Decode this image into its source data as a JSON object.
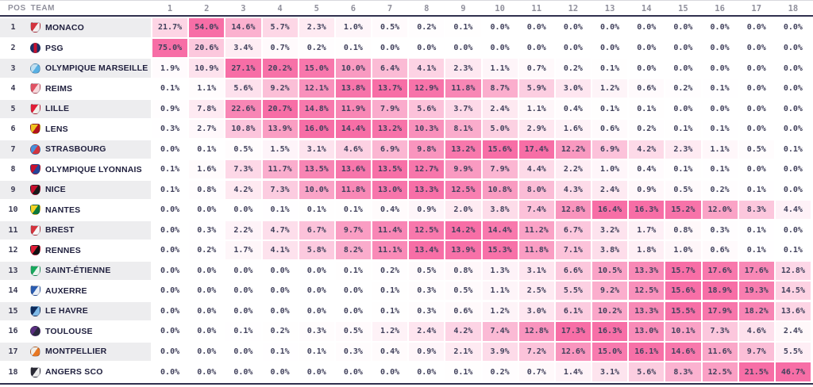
{
  "table": {
    "pos_header": "POS",
    "team_header": "TEAM"
  },
  "colors": {
    "divider": "#30304e",
    "zebra": "#ededef",
    "header_text": "#90909c",
    "value_text": "#41415c",
    "team_text": "#20203e",
    "pos_text": "#3a3a52",
    "heat_max": "#f76ea6",
    "heat_min": "#ffffff"
  },
  "chart_data": {
    "type": "heatmap",
    "x_labels": [
      "1",
      "2",
      "3",
      "4",
      "5",
      "6",
      "7",
      "8",
      "9",
      "10",
      "11",
      "12",
      "13",
      "14",
      "15",
      "16",
      "17",
      "18"
    ],
    "value_format": "percent_one_decimal",
    "color_scale": {
      "min_color": "#ffffff",
      "max_color": "#f76ea6",
      "normalize": "column-max"
    },
    "rows": [
      {
        "pos": "1",
        "team": "MONACO",
        "crest": {
          "shape": "shield",
          "split": "diag",
          "colors": [
            "#d3343e",
            "#f5efef"
          ]
        },
        "values": [
          21.7,
          54.0,
          14.6,
          5.7,
          2.3,
          1.0,
          0.5,
          0.2,
          0.1,
          0.0,
          0.0,
          0.0,
          0.0,
          0.0,
          0.0,
          0.0,
          0.0,
          0.0
        ]
      },
      {
        "pos": "2",
        "team": "PSG",
        "crest": {
          "shape": "circle",
          "split": "vstripe",
          "colors": [
            "#1a3068",
            "#c8102e"
          ]
        },
        "values": [
          75.0,
          20.6,
          3.4,
          0.7,
          0.2,
          0.1,
          0.0,
          0.0,
          0.0,
          0.0,
          0.0,
          0.0,
          0.0,
          0.0,
          0.0,
          0.0,
          0.0,
          0.0
        ]
      },
      {
        "pos": "3",
        "team": "OLYMPIQUE MARSEILLE",
        "crest": {
          "shape": "circle",
          "split": "diag",
          "colors": [
            "#bfe0f2",
            "#58b0e3"
          ]
        },
        "values": [
          1.9,
          10.9,
          27.1,
          20.2,
          15.0,
          10.0,
          6.4,
          4.1,
          2.3,
          1.1,
          0.7,
          0.2,
          0.1,
          0.0,
          0.0,
          0.0,
          0.0,
          0.0
        ]
      },
      {
        "pos": "4",
        "team": "REIMS",
        "crest": {
          "shape": "shield",
          "split": "diag",
          "colors": [
            "#e05263",
            "#f7d9dc"
          ]
        },
        "values": [
          0.1,
          1.1,
          5.6,
          9.2,
          12.1,
          13.8,
          13.7,
          12.9,
          11.8,
          8.7,
          5.9,
          3.0,
          1.2,
          0.6,
          0.2,
          0.1,
          0.0,
          0.0
        ]
      },
      {
        "pos": "5",
        "team": "LILLE",
        "crest": {
          "shape": "shield",
          "split": "diag",
          "colors": [
            "#e01e37",
            "#f2efe9"
          ]
        },
        "values": [
          0.9,
          7.8,
          22.6,
          20.7,
          14.8,
          11.9,
          7.9,
          5.6,
          3.7,
          2.4,
          1.1,
          0.4,
          0.1,
          0.1,
          0.0,
          0.0,
          0.0,
          0.0
        ]
      },
      {
        "pos": "6",
        "team": "LENS",
        "crest": {
          "shape": "shield",
          "split": "diag",
          "colors": [
            "#f0c420",
            "#b5121b"
          ]
        },
        "values": [
          0.3,
          2.7,
          10.8,
          13.9,
          16.0,
          14.4,
          13.2,
          10.3,
          8.1,
          5.0,
          2.9,
          1.6,
          0.6,
          0.2,
          0.1,
          0.1,
          0.0,
          0.0
        ]
      },
      {
        "pos": "7",
        "team": "STRASBOURG",
        "crest": {
          "shape": "circle",
          "split": "diag",
          "colors": [
            "#4a90d9",
            "#d3343e"
          ]
        },
        "values": [
          0.0,
          0.1,
          0.5,
          1.5,
          3.1,
          4.6,
          6.9,
          9.8,
          13.2,
          15.6,
          17.4,
          12.2,
          6.9,
          4.2,
          2.3,
          1.1,
          0.5,
          0.1
        ]
      },
      {
        "pos": "8",
        "team": "OLYMPIQUE LYONNAIS",
        "crest": {
          "shape": "shield",
          "split": "diag",
          "colors": [
            "#c8102e",
            "#24459a"
          ]
        },
        "values": [
          0.1,
          1.6,
          7.3,
          11.7,
          13.5,
          13.6,
          13.5,
          12.7,
          9.9,
          7.9,
          4.4,
          2.2,
          1.0,
          0.4,
          0.1,
          0.1,
          0.0,
          0.0
        ]
      },
      {
        "pos": "9",
        "team": "NICE",
        "crest": {
          "shape": "shield",
          "split": "diag",
          "colors": [
            "#c8102e",
            "#1a1a1a"
          ]
        },
        "values": [
          0.1,
          0.8,
          4.2,
          7.3,
          10.0,
          11.8,
          13.0,
          13.3,
          12.5,
          10.8,
          8.0,
          4.3,
          2.4,
          0.9,
          0.5,
          0.2,
          0.1,
          0.0
        ]
      },
      {
        "pos": "10",
        "team": "NANTES",
        "crest": {
          "shape": "shield",
          "split": "diag",
          "colors": [
            "#f5d327",
            "#0a7a3c"
          ]
        },
        "values": [
          0.0,
          0.0,
          0.0,
          0.1,
          0.1,
          0.1,
          0.4,
          0.9,
          2.0,
          3.8,
          7.4,
          12.8,
          16.4,
          16.3,
          15.2,
          12.0,
          8.3,
          4.4
        ]
      },
      {
        "pos": "11",
        "team": "BREST",
        "crest": {
          "shape": "shield",
          "split": "diag",
          "colors": [
            "#d3343e",
            "#f7f7f7"
          ]
        },
        "values": [
          0.0,
          0.3,
          2.2,
          4.7,
          6.7,
          9.7,
          11.4,
          12.5,
          14.2,
          14.4,
          11.2,
          6.7,
          3.2,
          1.7,
          0.8,
          0.3,
          0.1,
          0.0
        ]
      },
      {
        "pos": "12",
        "team": "RENNES",
        "crest": {
          "shape": "shield",
          "split": "diag",
          "colors": [
            "#e01e37",
            "#111111"
          ]
        },
        "values": [
          0.0,
          0.2,
          1.7,
          4.1,
          5.8,
          8.2,
          11.1,
          13.4,
          13.9,
          15.3,
          11.8,
          7.1,
          3.8,
          1.8,
          1.0,
          0.6,
          0.1,
          0.1
        ]
      },
      {
        "pos": "13",
        "team": "SAINT-ÉTIENNE",
        "crest": {
          "shape": "shield",
          "split": "diag",
          "colors": [
            "#18a85c",
            "#e9f5ee"
          ]
        },
        "values": [
          0.0,
          0.0,
          0.0,
          0.0,
          0.0,
          0.1,
          0.2,
          0.5,
          0.8,
          1.3,
          3.1,
          6.6,
          10.5,
          13.3,
          15.7,
          17.6,
          17.6,
          12.8
        ]
      },
      {
        "pos": "14",
        "team": "AUXERRE",
        "crest": {
          "shape": "shield",
          "split": "diag",
          "colors": [
            "#2a5cb0",
            "#e8eef7"
          ]
        },
        "values": [
          0.0,
          0.0,
          0.0,
          0.0,
          0.0,
          0.0,
          0.1,
          0.3,
          0.5,
          1.1,
          2.5,
          5.5,
          9.2,
          12.5,
          15.6,
          18.9,
          19.3,
          14.5
        ]
      },
      {
        "pos": "15",
        "team": "LE HAVRE",
        "crest": {
          "shape": "shield",
          "split": "diag",
          "colors": [
            "#0e2a5c",
            "#7db9e8"
          ]
        },
        "values": [
          0.0,
          0.0,
          0.0,
          0.0,
          0.0,
          0.0,
          0.1,
          0.3,
          0.6,
          1.2,
          3.0,
          6.1,
          10.2,
          13.3,
          15.5,
          17.9,
          18.2,
          13.6
        ]
      },
      {
        "pos": "16",
        "team": "TOULOUSE",
        "crest": {
          "shape": "circle",
          "split": "diag",
          "colors": [
            "#5a2d81",
            "#2a2a3e"
          ]
        },
        "values": [
          0.0,
          0.0,
          0.1,
          0.2,
          0.3,
          0.5,
          1.2,
          2.4,
          4.2,
          7.4,
          12.8,
          17.3,
          16.3,
          13.0,
          10.1,
          7.3,
          4.6,
          2.4
        ]
      },
      {
        "pos": "17",
        "team": "MONTPELLIER",
        "crest": {
          "shape": "circle",
          "split": "diag",
          "colors": [
            "#f0ede6",
            "#e87722"
          ]
        },
        "values": [
          0.0,
          0.0,
          0.0,
          0.1,
          0.1,
          0.3,
          0.4,
          0.9,
          2.1,
          3.9,
          7.2,
          12.6,
          15.0,
          16.1,
          14.6,
          11.6,
          9.7,
          5.5
        ]
      },
      {
        "pos": "18",
        "team": "ANGERS SCO",
        "crest": {
          "shape": "shield",
          "split": "diag",
          "colors": [
            "#2a2a35",
            "#ececec"
          ]
        },
        "values": [
          0.0,
          0.0,
          0.0,
          0.0,
          0.0,
          0.0,
          0.0,
          0.0,
          0.1,
          0.2,
          0.7,
          1.4,
          3.1,
          5.6,
          8.3,
          12.5,
          21.5,
          46.7
        ]
      }
    ]
  }
}
